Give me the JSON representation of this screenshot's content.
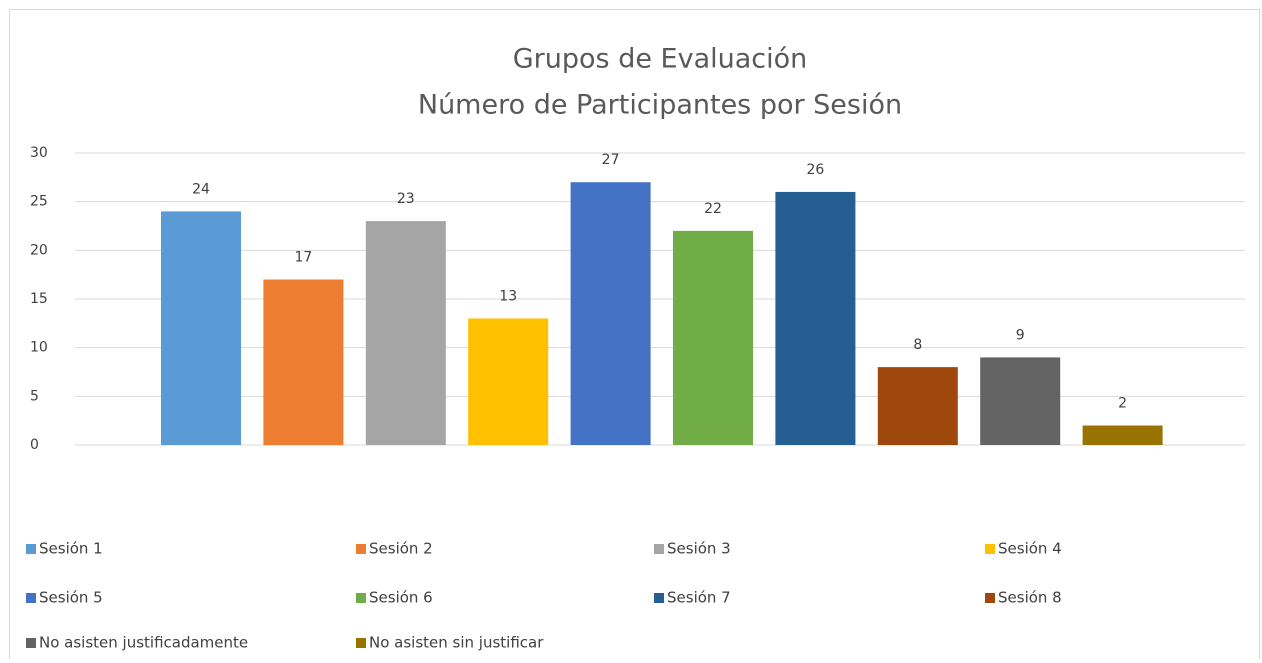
{
  "chart_data": {
    "type": "bar",
    "title": "Grupos de Evaluación",
    "subtitle": "Número de Participantes  por Sesión",
    "ylim": [
      0,
      30
    ],
    "yticks": [
      0,
      5,
      10,
      15,
      20,
      25,
      30
    ],
    "grid": true,
    "series": [
      {
        "name": "Sesión 1",
        "color": "#5b9bd5",
        "values": [
          24
        ]
      },
      {
        "name": "Sesión 2",
        "color": "#ed7d31",
        "values": [
          17
        ]
      },
      {
        "name": "Sesión 3",
        "color": "#a5a5a5",
        "values": [
          23
        ]
      },
      {
        "name": "Sesión 4",
        "color": "#ffc000",
        "values": [
          13
        ]
      },
      {
        "name": "Sesión 5",
        "color": "#4472c4",
        "values": [
          27
        ]
      },
      {
        "name": "Sesión 6",
        "color": "#70ad47",
        "values": [
          22
        ]
      },
      {
        "name": "Sesión 7",
        "color": "#255e91",
        "values": [
          26
        ]
      },
      {
        "name": "Sesión 8",
        "color": "#9e480e",
        "values": [
          8
        ]
      },
      {
        "name": "No asisten justificadamente",
        "color": "#636363",
        "values": [
          9
        ]
      },
      {
        "name": "No asisten sin justificar",
        "color": "#997300",
        "values": [
          2
        ]
      }
    ]
  }
}
